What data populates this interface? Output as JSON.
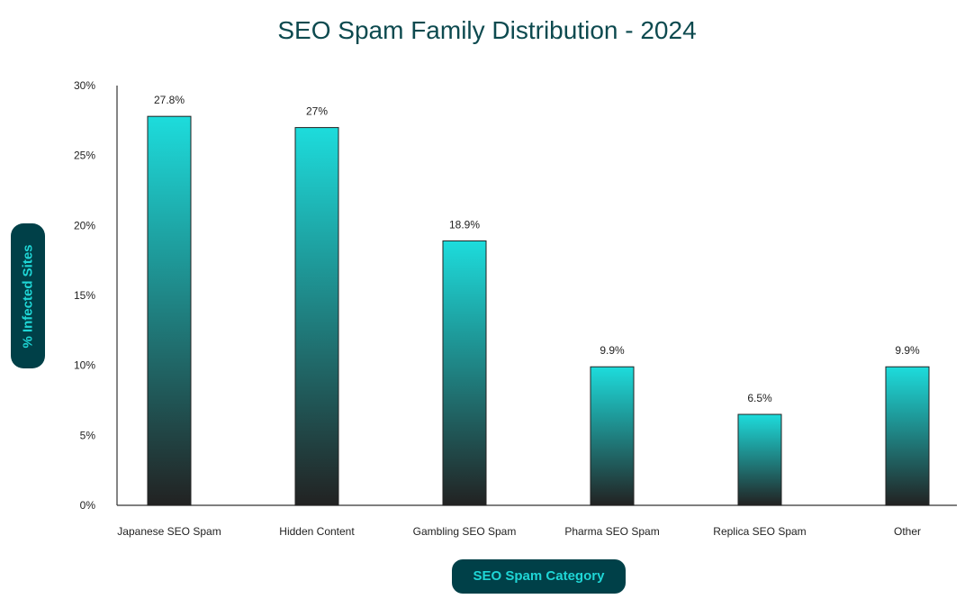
{
  "chart_data": {
    "type": "bar",
    "title": "SEO Spam Family Distribution - 2024",
    "xlabel": "SEO Spam Category",
    "ylabel": "% Infected Sites",
    "categories": [
      "Japanese SEO Spam",
      "Hidden Content",
      "Gambling SEO Spam",
      "Pharma SEO Spam",
      "Replica SEO Spam",
      "Other"
    ],
    "values": [
      27.8,
      27,
      18.9,
      9.9,
      6.5,
      9.9
    ],
    "data_labels": [
      "27.8%",
      "27%",
      "18.9%",
      "9.9%",
      "6.5%",
      "9.9%"
    ],
    "ylim": [
      0,
      30
    ],
    "yticks": [
      0,
      5,
      10,
      15,
      20,
      25,
      30
    ],
    "ytick_labels": [
      "0%",
      "5%",
      "10%",
      "15%",
      "20%",
      "25%",
      "30%"
    ],
    "grid": false,
    "colors": {
      "bar_top": "#1ddcdc",
      "bar_bottom": "#222222",
      "label_bg": "#004048",
      "label_text": "#1fd6d6",
      "title": "#0d4a4f"
    }
  }
}
